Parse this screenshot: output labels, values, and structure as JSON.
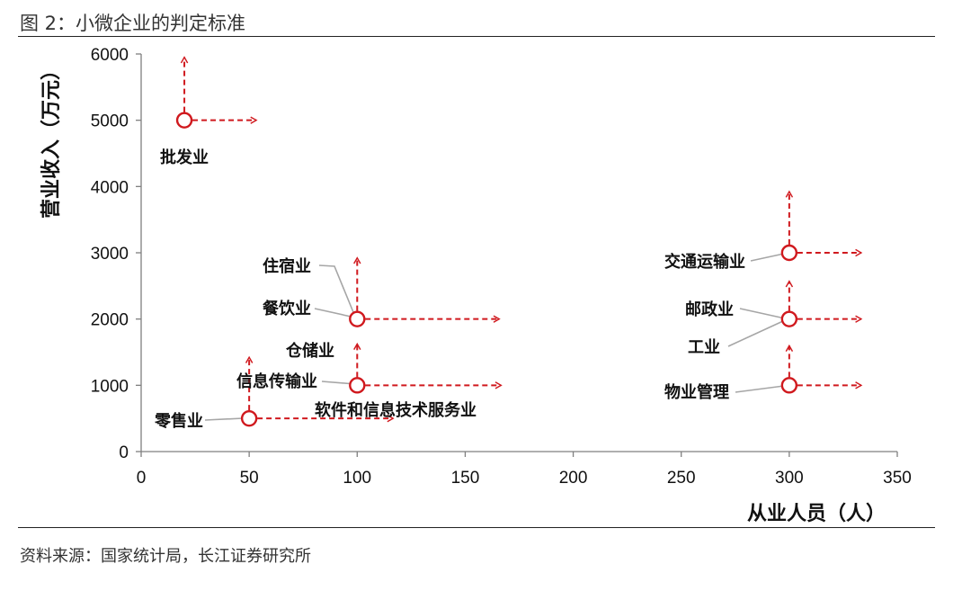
{
  "header": {
    "title": "图 2：小微企业的判定标准"
  },
  "footer": {
    "source": "资料来源：国家统计局，长江证券研究所"
  },
  "colors": {
    "marker": "#d0191e",
    "leader": "#a6a6a6",
    "axis": "#7f7f7f"
  },
  "chart_data": {
    "type": "scatter",
    "title": "",
    "xlabel": "从业人员（人）",
    "ylabel": "营业收入（万元）",
    "xlim": [
      0,
      350
    ],
    "ylim": [
      0,
      6000
    ],
    "xticks": [
      0,
      50,
      100,
      150,
      200,
      250,
      300,
      350
    ],
    "yticks": [
      0,
      1000,
      2000,
      3000,
      4000,
      5000,
      6000
    ],
    "points": [
      {
        "x": 20,
        "y": 5000,
        "labels": [
          "批发业"
        ]
      },
      {
        "x": 50,
        "y": 500,
        "labels": [
          "零售业"
        ]
      },
      {
        "x": 100,
        "y": 2000,
        "labels": [
          "住宿业",
          "餐饮业"
        ]
      },
      {
        "x": 100,
        "y": 1000,
        "labels": [
          "仓储业",
          "信息传输业",
          "软件和信息技术服务业"
        ]
      },
      {
        "x": 300,
        "y": 3000,
        "labels": [
          "交通运输业"
        ]
      },
      {
        "x": 300,
        "y": 2000,
        "labels": [
          "邮政业",
          "工业"
        ]
      },
      {
        "x": 300,
        "y": 1000,
        "labels": [
          "物业管理"
        ]
      }
    ]
  }
}
